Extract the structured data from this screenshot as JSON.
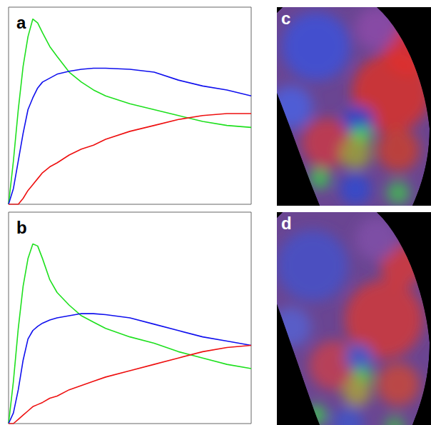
{
  "chart_data": [
    {
      "type": "line",
      "title": "a",
      "tick_labels": false,
      "grid": false,
      "xlim": [
        0,
        100
      ],
      "ylim": [
        0,
        100
      ],
      "x": [
        0,
        2,
        4,
        6,
        8,
        10,
        12,
        14,
        17,
        20,
        25,
        30,
        35,
        40,
        50,
        60,
        70,
        80,
        90,
        100
      ],
      "series": [
        {
          "color": "#1ee01e",
          "values": [
            0,
            22,
            48,
            70,
            85,
            94,
            92,
            87,
            80,
            75,
            67,
            62,
            58,
            55,
            51,
            48,
            45,
            42,
            40,
            39
          ]
        },
        {
          "color": "#1010ee",
          "values": [
            0,
            8,
            22,
            36,
            48,
            54,
            59,
            62,
            64,
            66,
            67.5,
            68.5,
            69,
            69,
            68.5,
            67,
            63,
            60,
            58,
            55
          ]
        },
        {
          "color": "#ee1010",
          "values": [
            0,
            0,
            0,
            3,
            7,
            10,
            13,
            16,
            19,
            21,
            25,
            28,
            30,
            33,
            37,
            40,
            43,
            45,
            46,
            46
          ]
        }
      ]
    },
    {
      "type": "line",
      "title": "b",
      "tick_labels": false,
      "grid": false,
      "xlim": [
        0,
        100
      ],
      "ylim": [
        0,
        100
      ],
      "x": [
        0,
        2,
        4,
        6,
        8,
        10,
        12,
        14,
        17,
        20,
        25,
        30,
        35,
        40,
        50,
        60,
        70,
        80,
        90,
        100
      ],
      "series": [
        {
          "color": "#1ee01e",
          "values": [
            0,
            20,
            45,
            65,
            78,
            85,
            84,
            78,
            68,
            62,
            56,
            51,
            48,
            45,
            41,
            38,
            34,
            31,
            28,
            26
          ]
        },
        {
          "color": "#1010ee",
          "values": [
            0,
            5,
            16,
            30,
            40,
            44,
            46,
            47.5,
            49,
            50,
            51,
            52,
            52,
            51.5,
            50,
            47,
            44,
            41,
            39,
            37
          ]
        },
        {
          "color": "#ee1010",
          "values": [
            0,
            0,
            2,
            4,
            6,
            8,
            9,
            10,
            12,
            13,
            16,
            18,
            20,
            22,
            25,
            28,
            31,
            34,
            36,
            37
          ]
        }
      ]
    }
  ],
  "images": [
    {
      "label": "c"
    },
    {
      "label": "d"
    }
  ]
}
